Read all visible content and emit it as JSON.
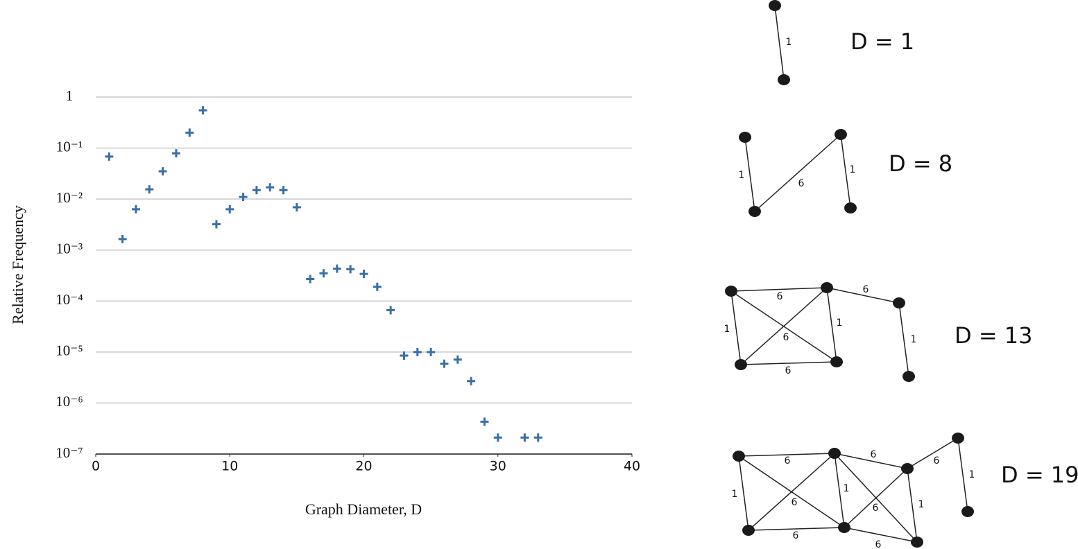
{
  "chart_data": {
    "type": "scatter",
    "x_label": "Graph Diameter, D",
    "y_label": "Relative Frequency",
    "x": [
      1,
      2,
      3,
      4,
      5,
      6,
      7,
      8,
      9,
      10,
      11,
      12,
      13,
      14,
      15,
      16,
      17,
      18,
      19,
      20,
      21,
      22,
      23,
      24,
      25,
      26,
      27,
      28,
      29,
      30,
      32,
      33
    ],
    "values": [
      0.068,
      0.00164,
      0.0063,
      0.0155,
      0.035,
      0.079,
      0.2,
      0.55,
      0.0032,
      0.0063,
      0.011,
      0.015,
      0.017,
      0.015,
      0.0069,
      0.00027,
      0.00035,
      0.00043,
      0.00042,
      0.00034,
      0.00019,
      6.6e-05,
      8.5e-06,
      1e-05,
      1e-05,
      5.9e-06,
      7.1e-06,
      2.7e-06,
      4.3e-07,
      2.1e-07,
      2.1e-07,
      2.1e-07
    ],
    "color": "#3a6ea5",
    "xlim": [
      0,
      40
    ],
    "xticks": [
      0,
      10,
      20,
      30,
      40
    ],
    "ylim": [
      1e-07,
      1
    ],
    "log_y": true,
    "grid": true,
    "yticks": [
      {
        "value": 1,
        "label": "1"
      },
      {
        "value": 0.1,
        "label": "10⁻¹"
      },
      {
        "value": 0.01,
        "label": "10⁻²"
      },
      {
        "value": 0.001,
        "label": "10⁻³"
      },
      {
        "value": 0.0001,
        "label": "10⁻⁴"
      },
      {
        "value": 1e-05,
        "label": "10⁻⁵"
      },
      {
        "value": 1e-06,
        "label": "10⁻⁶"
      },
      {
        "value": 1e-07,
        "label": "10⁻⁷"
      }
    ]
  },
  "graphs": [
    {
      "label": "D = 1",
      "edge_labels": [
        "1"
      ]
    },
    {
      "label": "D = 8",
      "edge_labels": [
        "1",
        "6",
        "1"
      ]
    },
    {
      "label": "D = 13",
      "edge_labels": [
        "6",
        "1",
        "1",
        "6",
        "6",
        "6",
        "1"
      ]
    },
    {
      "label": "D = 19",
      "edge_labels": [
        "6",
        "1",
        "1",
        "6",
        "6",
        "6",
        "6",
        "1",
        "6",
        "6",
        "1"
      ]
    }
  ]
}
